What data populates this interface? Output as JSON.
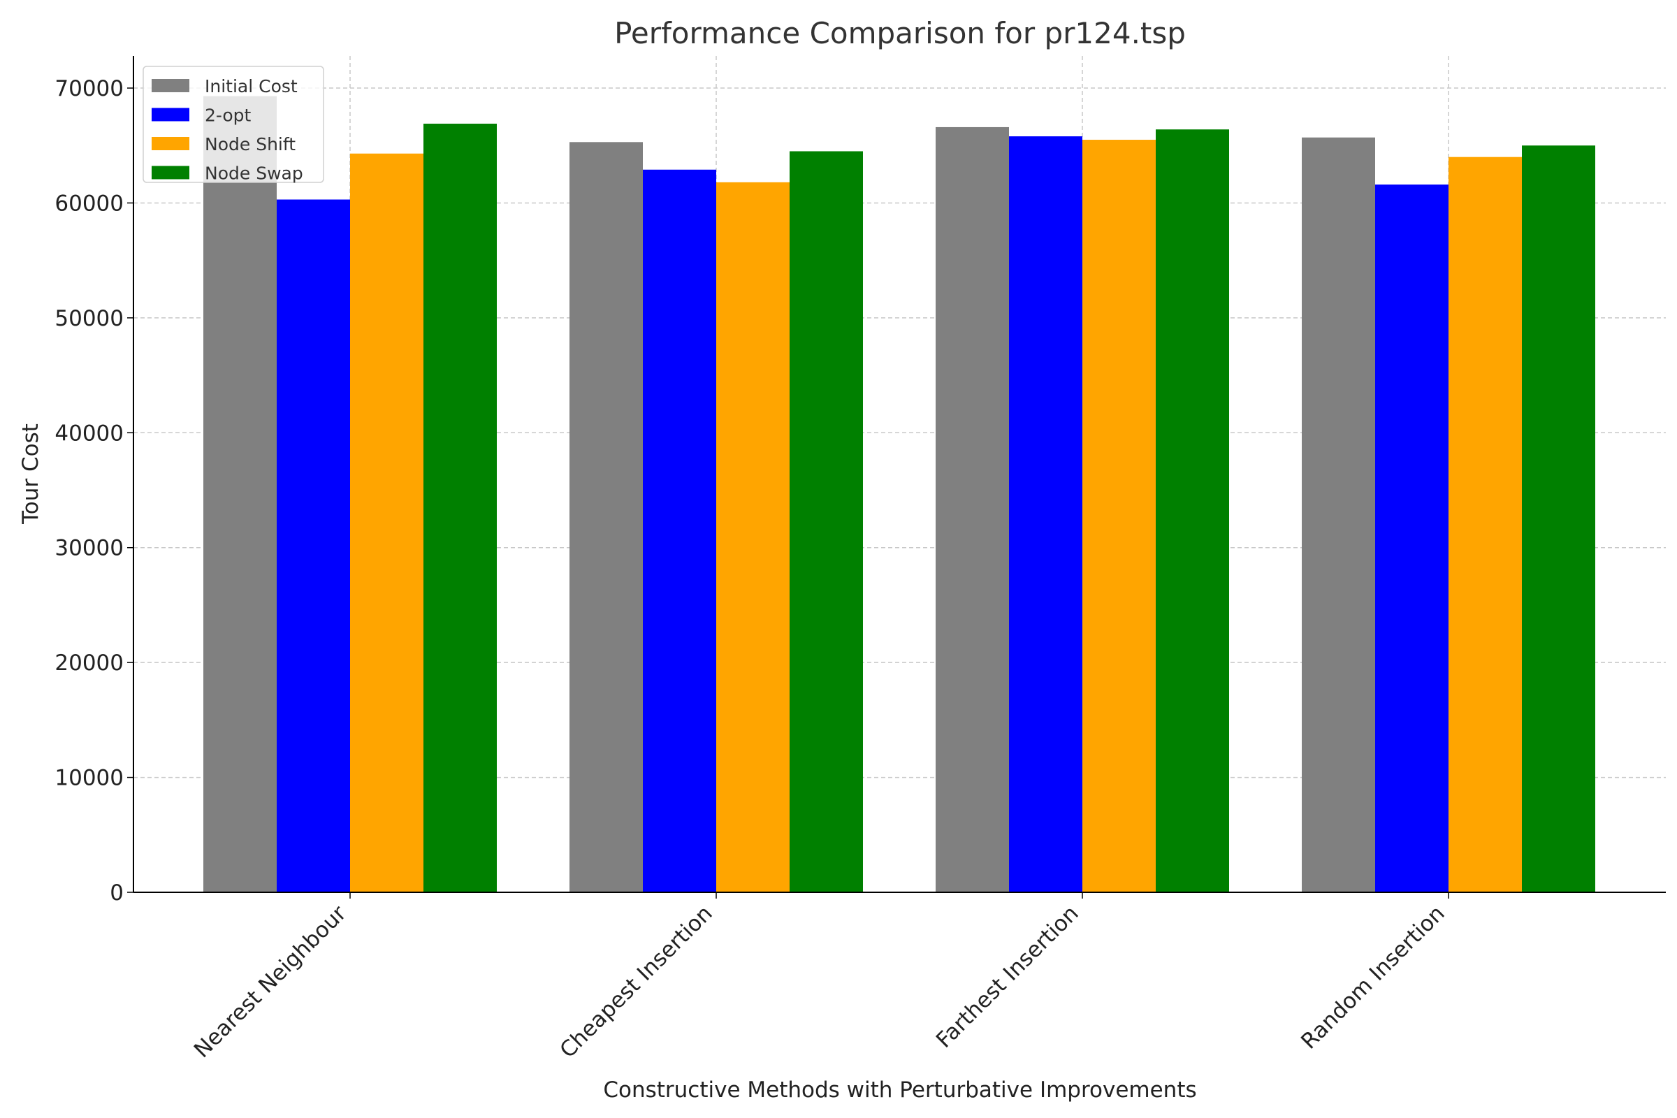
{
  "chart_data": {
    "type": "bar",
    "title": "Performance Comparison for pr124.tsp",
    "xlabel": "Constructive Methods with Perturbative Improvements",
    "ylabel": "Tour Cost",
    "categories": [
      "Nearest Neighbour",
      "Cheapest Insertion",
      "Farthest Insertion",
      "Random Insertion"
    ],
    "series": [
      {
        "name": "Initial Cost",
        "color": "#808080",
        "values": [
          69300,
          65300,
          66600,
          65700
        ]
      },
      {
        "name": "2-opt",
        "color": "#0000ff",
        "values": [
          60300,
          62900,
          65800,
          61600
        ]
      },
      {
        "name": "Node Shift",
        "color": "#ffa500",
        "values": [
          64300,
          61800,
          65500,
          64000
        ]
      },
      {
        "name": "Node Swap",
        "color": "#008000",
        "values": [
          66900,
          64500,
          66400,
          65000
        ]
      }
    ],
    "ylim": [
      0,
      72800
    ],
    "yticks": [
      0,
      10000,
      20000,
      30000,
      40000,
      50000,
      60000,
      70000
    ],
    "grid": true,
    "legend_position": "top-left"
  }
}
